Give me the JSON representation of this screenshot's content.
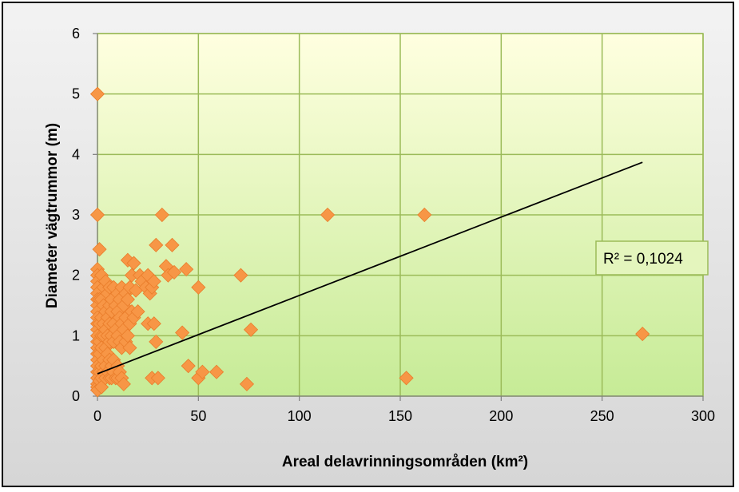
{
  "chart_data": {
    "type": "scatter",
    "xlabel": "Areal delavrinningsområden (km²)",
    "ylabel": "Diameter vägtrummor (m)",
    "xlim": [
      0,
      300
    ],
    "ylim": [
      0,
      6
    ],
    "xticks": [
      0,
      50,
      100,
      150,
      200,
      250,
      300
    ],
    "yticks": [
      0,
      1,
      2,
      3,
      4,
      5,
      6
    ],
    "grid": true,
    "marker": "diamond",
    "marker_color": "#f79646",
    "plot_background": [
      "#ffffe0",
      "#c6eb96"
    ],
    "gridline_color": "#9bbb59",
    "trendline": {
      "type": "linear",
      "x": [
        0,
        270
      ],
      "y": [
        0.37,
        3.87
      ],
      "color": "#000000",
      "r2_label": "R² = 0,1024"
    },
    "points": [
      [
        0,
        5.0
      ],
      [
        0,
        3.0
      ],
      [
        1,
        2.43
      ],
      [
        0,
        2.1
      ],
      [
        0,
        2.0
      ],
      [
        0,
        1.9
      ],
      [
        0,
        1.8
      ],
      [
        0,
        1.7
      ],
      [
        0,
        1.6
      ],
      [
        0,
        1.5
      ],
      [
        0,
        1.4
      ],
      [
        0,
        1.3
      ],
      [
        0,
        1.2
      ],
      [
        0,
        1.1
      ],
      [
        0,
        1.0
      ],
      [
        0,
        0.9
      ],
      [
        0,
        0.8
      ],
      [
        0,
        0.7
      ],
      [
        0,
        0.6
      ],
      [
        0,
        0.5
      ],
      [
        0,
        0.4
      ],
      [
        0,
        0.3
      ],
      [
        0,
        0.2
      ],
      [
        0,
        0.15
      ],
      [
        0,
        0.1
      ],
      [
        1,
        1.6
      ],
      [
        1,
        1.2
      ],
      [
        1,
        0.9
      ],
      [
        1,
        0.7
      ],
      [
        1,
        0.4
      ],
      [
        1,
        0.25
      ],
      [
        2,
        2.0
      ],
      [
        2,
        1.6
      ],
      [
        2,
        1.3
      ],
      [
        2,
        1.0
      ],
      [
        2,
        0.8
      ],
      [
        2,
        0.5
      ],
      [
        2,
        0.3
      ],
      [
        2,
        0.15
      ],
      [
        3,
        1.8
      ],
      [
        3,
        1.5
      ],
      [
        3,
        1.2
      ],
      [
        3,
        1.0
      ],
      [
        3,
        0.6
      ],
      [
        3,
        0.4
      ],
      [
        4,
        1.9
      ],
      [
        4,
        1.4
      ],
      [
        4,
        1.1
      ],
      [
        4,
        0.8
      ],
      [
        4,
        0.5
      ],
      [
        4,
        0.3
      ],
      [
        5,
        1.7
      ],
      [
        5,
        1.3
      ],
      [
        5,
        1.0
      ],
      [
        5,
        0.7
      ],
      [
        5,
        0.4
      ],
      [
        6,
        1.8
      ],
      [
        6,
        1.5
      ],
      [
        6,
        1.2
      ],
      [
        6,
        0.9
      ],
      [
        6,
        0.6
      ],
      [
        6,
        0.3
      ],
      [
        7,
        1.6
      ],
      [
        7,
        1.4
      ],
      [
        7,
        1.0
      ],
      [
        7,
        0.5
      ],
      [
        7,
        0.3
      ],
      [
        8,
        1.8
      ],
      [
        8,
        1.2
      ],
      [
        8,
        0.9
      ],
      [
        8,
        0.6
      ],
      [
        8,
        0.4
      ],
      [
        9,
        1.5
      ],
      [
        9,
        1.1
      ],
      [
        9,
        0.3
      ],
      [
        10,
        1.7
      ],
      [
        10,
        1.4
      ],
      [
        10,
        1.0
      ],
      [
        10,
        0.5
      ],
      [
        10,
        0.3
      ],
      [
        11,
        1.6
      ],
      [
        11,
        1.3
      ],
      [
        11,
        0.9
      ],
      [
        11,
        0.4
      ],
      [
        12,
        1.8
      ],
      [
        12,
        1.2
      ],
      [
        12,
        0.8
      ],
      [
        12,
        0.3
      ],
      [
        13,
        1.5
      ],
      [
        13,
        1.1
      ],
      [
        13,
        0.2
      ],
      [
        14,
        1.7
      ],
      [
        14,
        1.3
      ],
      [
        14,
        0.9
      ],
      [
        15,
        2.25
      ],
      [
        15,
        1.6
      ],
      [
        15,
        1.0
      ],
      [
        16,
        1.8
      ],
      [
        16,
        1.2
      ],
      [
        16,
        0.8
      ],
      [
        17,
        2.0
      ],
      [
        17,
        1.4
      ],
      [
        18,
        2.2
      ],
      [
        18,
        1.3
      ],
      [
        19,
        1.75
      ],
      [
        20,
        1.4
      ],
      [
        21,
        2.0
      ],
      [
        22,
        1.9
      ],
      [
        24,
        1.8
      ],
      [
        25,
        2.0
      ],
      [
        25,
        1.2
      ],
      [
        26,
        1.7
      ],
      [
        27,
        0.3
      ],
      [
        27,
        1.8
      ],
      [
        28,
        1.9
      ],
      [
        28,
        1.2
      ],
      [
        29,
        2.5
      ],
      [
        29,
        0.9
      ],
      [
        30,
        0.3
      ],
      [
        32,
        3.0
      ],
      [
        34,
        2.15
      ],
      [
        35,
        2.0
      ],
      [
        37,
        2.5
      ],
      [
        38,
        2.05
      ],
      [
        42,
        1.05
      ],
      [
        44,
        2.1
      ],
      [
        45,
        0.5
      ],
      [
        50,
        1.8
      ],
      [
        50,
        0.3
      ],
      [
        52,
        0.4
      ],
      [
        59,
        0.4
      ],
      [
        71,
        2.0
      ],
      [
        74,
        0.2
      ],
      [
        76,
        1.1
      ],
      [
        114,
        3.0
      ],
      [
        153,
        0.3
      ],
      [
        162,
        3.0
      ],
      [
        270,
        1.03
      ]
    ]
  }
}
